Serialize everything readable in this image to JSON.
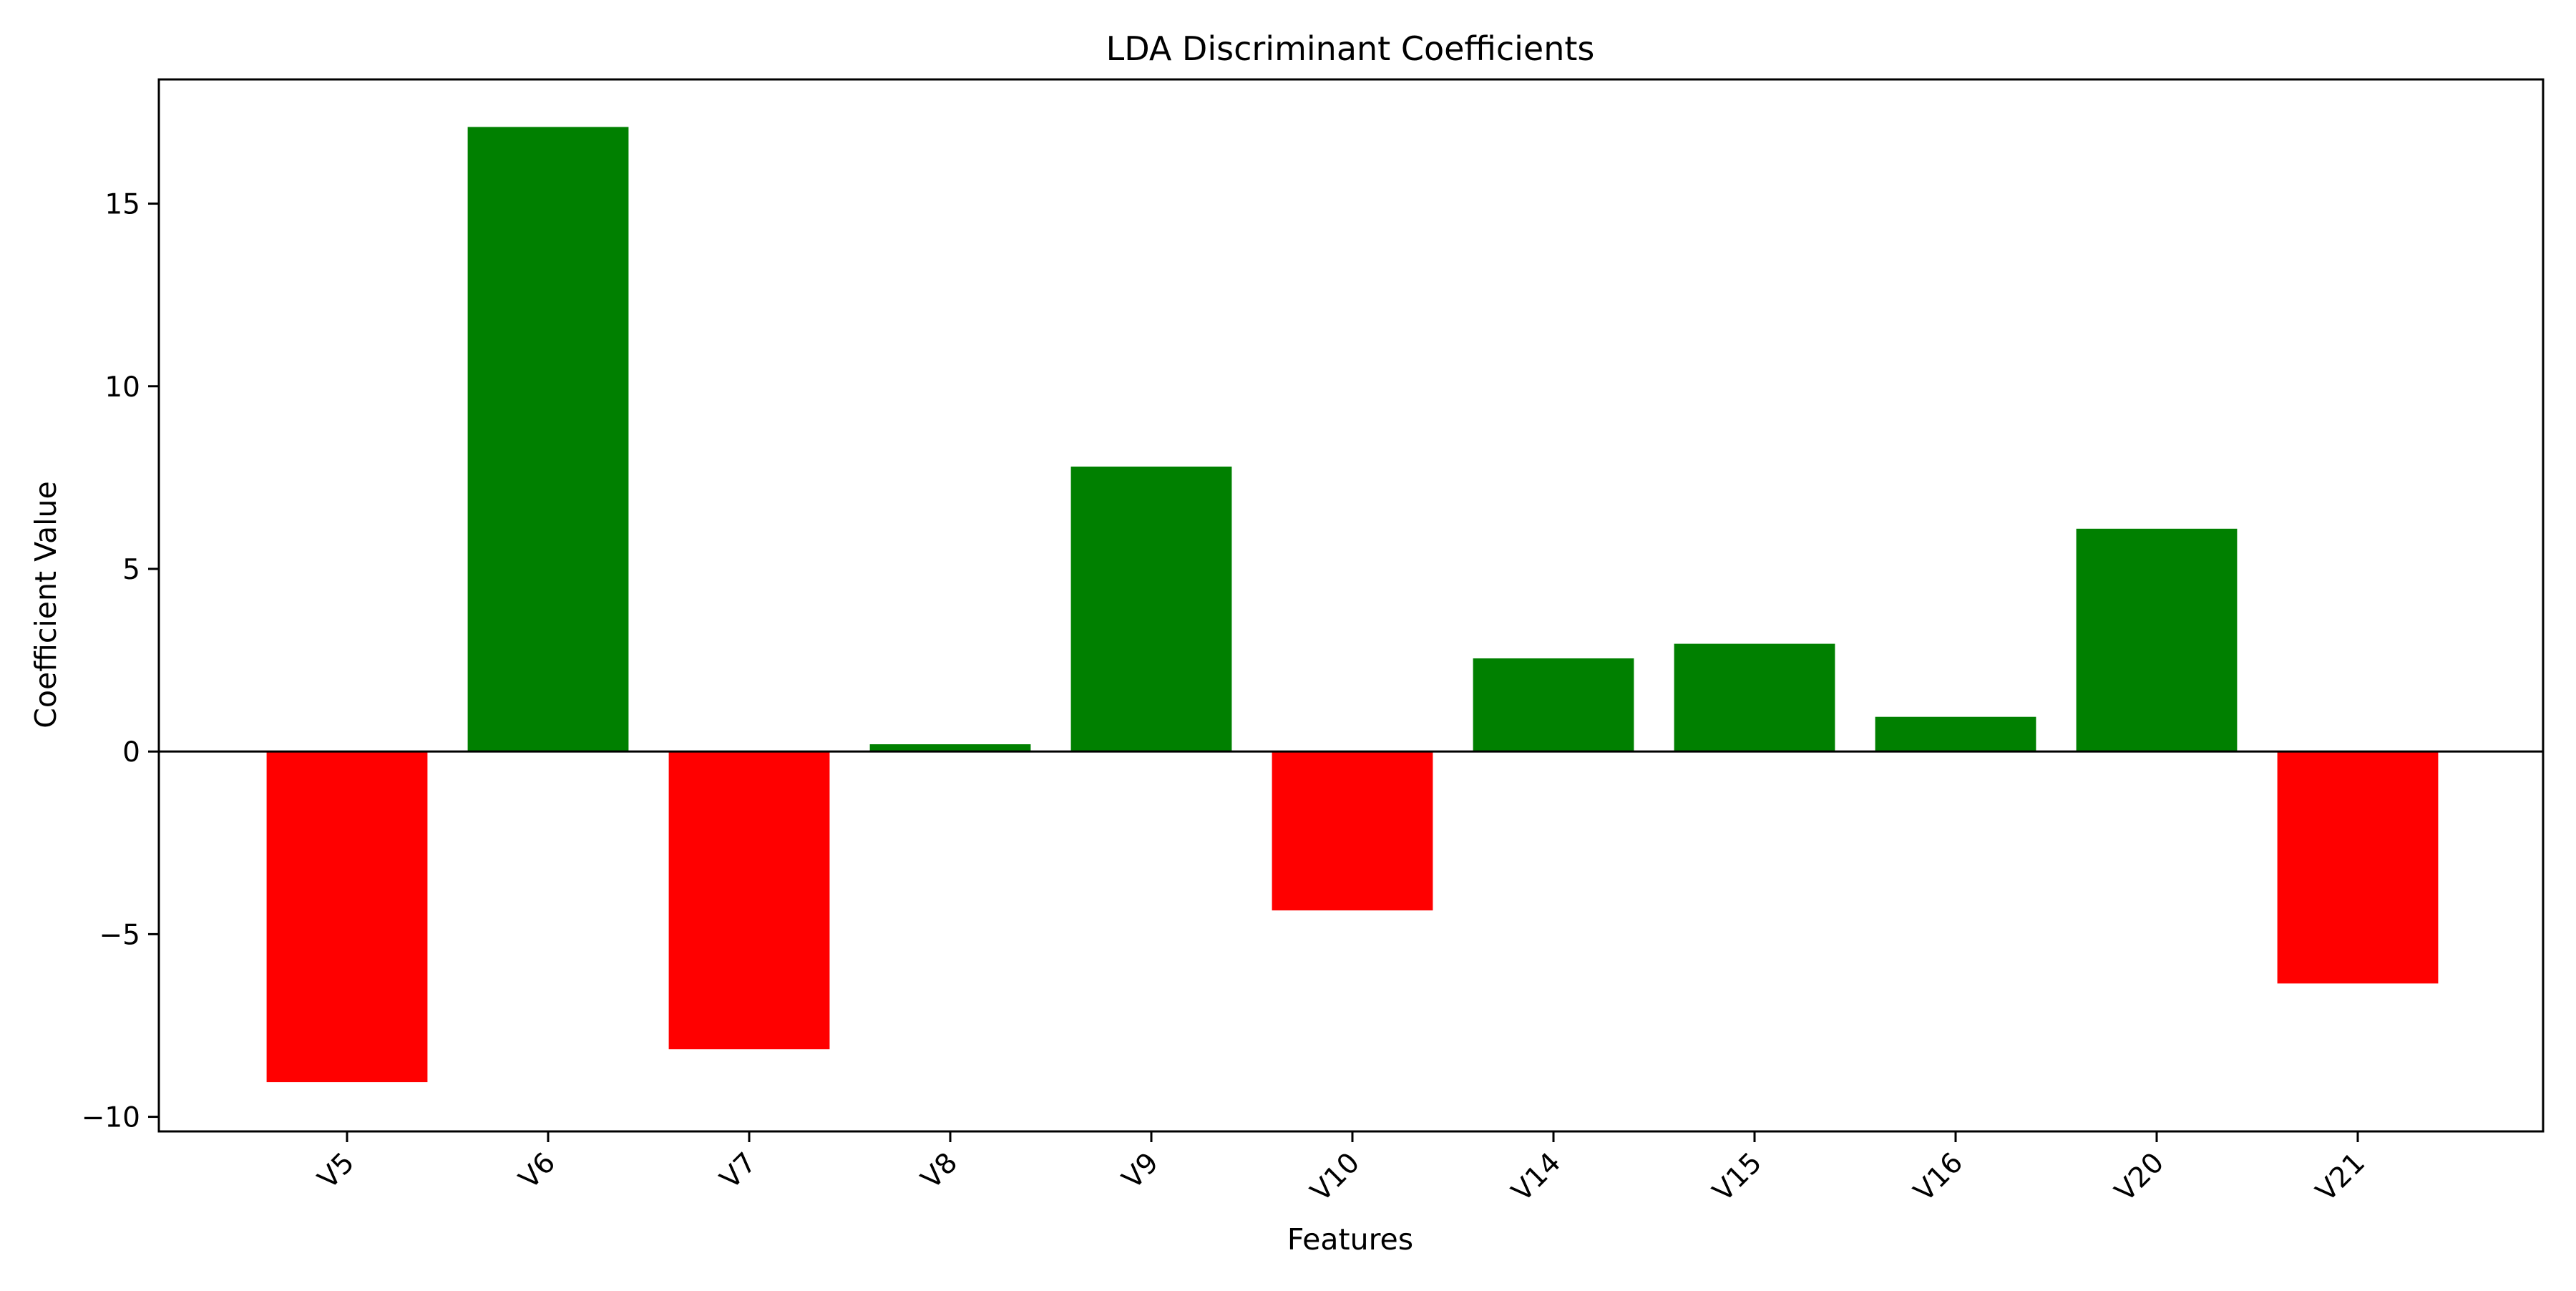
{
  "chart_data": {
    "type": "bar",
    "title": "LDA Discriminant Coefficients",
    "xlabel": "Features",
    "ylabel": "Coefficient Value",
    "categories": [
      "V5",
      "V6",
      "V7",
      "V8",
      "V9",
      "V10",
      "V14",
      "V15",
      "V16",
      "V20",
      "V21"
    ],
    "values": [
      -9.05,
      17.1,
      -8.15,
      0.2,
      7.8,
      -4.35,
      2.55,
      2.95,
      0.95,
      6.1,
      -6.35
    ],
    "ylim": [
      -10.4,
      18.4
    ],
    "yticks": [
      -10,
      -5,
      0,
      5,
      10,
      15
    ],
    "ytick_labels": [
      "−10",
      "−5",
      "0",
      "5",
      "10",
      "15"
    ],
    "colors": {
      "positive": "#008000",
      "negative": "#ff0000"
    },
    "zero_line": true,
    "grid": false,
    "legend": "none"
  }
}
